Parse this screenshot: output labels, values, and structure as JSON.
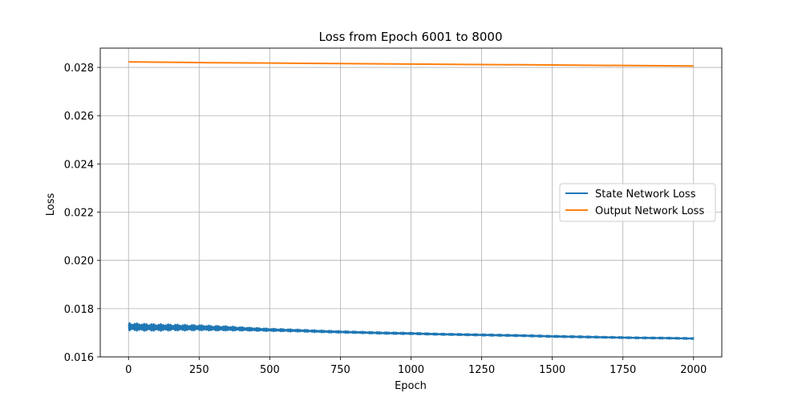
{
  "chart_data": {
    "type": "line",
    "title": "Loss from Epoch 6001 to 8000",
    "xlabel": "Epoch",
    "ylabel": "Loss",
    "xlim": [
      -100,
      2100
    ],
    "ylim": [
      0.016,
      0.0288
    ],
    "xticks": [
      0,
      250,
      500,
      750,
      1000,
      1250,
      1500,
      1750,
      2000
    ],
    "xtick_labels": [
      "0",
      "250",
      "500",
      "750",
      "1000",
      "1250",
      "1500",
      "1750",
      "2000"
    ],
    "yticks": [
      0.016,
      0.018,
      0.02,
      0.022,
      0.024,
      0.026,
      0.028
    ],
    "ytick_labels": [
      "0.016",
      "0.018",
      "0.020",
      "0.022",
      "0.024",
      "0.026",
      "0.028"
    ],
    "grid": true,
    "legend_position": "center-right",
    "series": [
      {
        "name": "State Network Loss",
        "color": "#1f77b4",
        "x": [
          0,
          50,
          100,
          150,
          200,
          250,
          300,
          350,
          400,
          450,
          500,
          600,
          700,
          800,
          900,
          1000,
          1100,
          1200,
          1300,
          1400,
          1500,
          1600,
          1700,
          1800,
          1900,
          2000
        ],
        "y": [
          0.01725,
          0.01723,
          0.01722,
          0.01722,
          0.01721,
          0.01721,
          0.01719,
          0.01718,
          0.01716,
          0.01714,
          0.01712,
          0.01709,
          0.01705,
          0.01702,
          0.01699,
          0.01697,
          0.01694,
          0.01692,
          0.0169,
          0.01688,
          0.01685,
          0.01683,
          0.01681,
          0.01679,
          0.01678,
          0.01676
        ],
        "spread": [
          0.0004,
          0.00038,
          0.00036,
          0.00034,
          0.00032,
          0.0003,
          0.00028,
          0.00026,
          0.00022,
          0.0002,
          0.00018,
          0.00016,
          0.00015,
          0.00014,
          0.00014,
          0.00014,
          0.00013,
          0.00013,
          0.00013,
          0.00013,
          0.00013,
          0.00013,
          0.00012,
          0.00012,
          0.00012,
          0.00012
        ]
      },
      {
        "name": "Output Network Loss",
        "color": "#ff7f0e",
        "x": [
          0,
          250,
          500,
          750,
          1000,
          1250,
          1500,
          1750,
          2000
        ],
        "y": [
          0.02823,
          0.0282,
          0.02818,
          0.02816,
          0.02814,
          0.02812,
          0.0281,
          0.02808,
          0.02806
        ]
      }
    ]
  }
}
